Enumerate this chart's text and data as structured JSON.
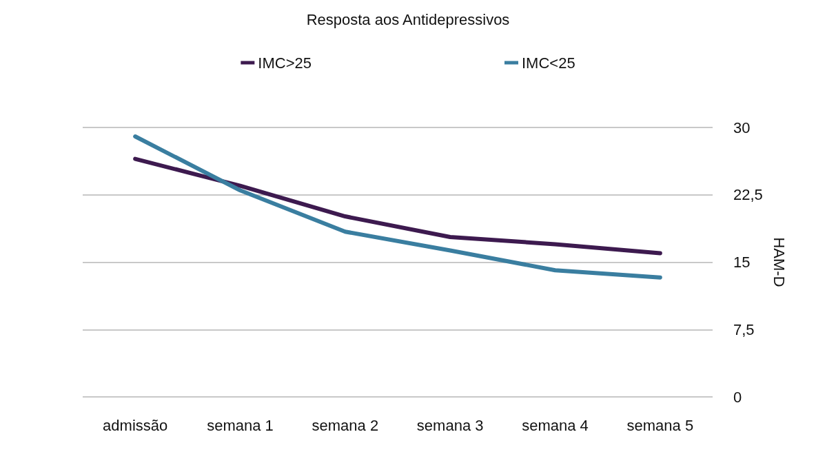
{
  "chart_data": {
    "type": "line",
    "title": "Resposta aos Antidepressivos",
    "ylabel": "HAM-D",
    "categories": [
      "admissão",
      "semana 1",
      "semana 2",
      "semana 3",
      "semana 4",
      "semana 5"
    ],
    "series": [
      {
        "name": "IMC>25",
        "color": "#3d1a4f",
        "values": [
          26.5,
          23.5,
          20.1,
          17.8,
          17.0,
          16.0
        ]
      },
      {
        "name": "IMC<25",
        "color": "#3a7ea0",
        "values": [
          29,
          23,
          18.4,
          16.3,
          14.1,
          13.3
        ]
      }
    ],
    "ylim": [
      0,
      30
    ],
    "yticks": [
      0,
      {
        "value": 7.5,
        "label": "7,5"
      },
      15,
      {
        "value": 22.5,
        "label": "22,5"
      },
      30
    ],
    "grid": "y",
    "legend": "top",
    "marker": "none",
    "line_style": "solid"
  }
}
